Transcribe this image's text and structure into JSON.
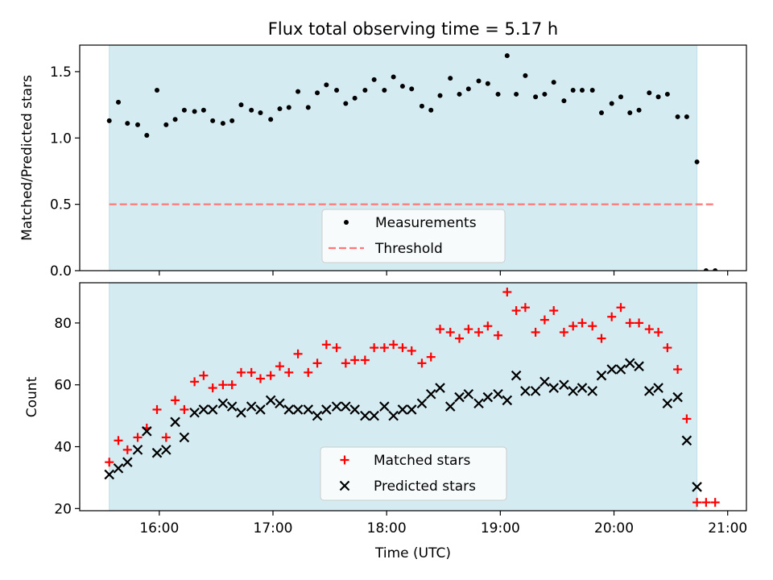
{
  "chart_data": {
    "title": "Flux total observing time = 5.17 h",
    "xlabel": "Time (UTC)",
    "xticks": [
      {
        "t": 16.0,
        "label": "16:00"
      },
      {
        "t": 17.0,
        "label": "17:00"
      },
      {
        "t": 18.0,
        "label": "18:00"
      },
      {
        "t": 19.0,
        "label": "19:00"
      },
      {
        "t": 20.0,
        "label": "20:00"
      },
      {
        "t": 21.0,
        "label": "21:00"
      }
    ],
    "shaded_span": [
      15.56,
      20.73
    ],
    "shade_color": "#d4ebf1",
    "panels": [
      {
        "type": "scatter",
        "ylabel": "Matched/Predicted stars",
        "ylim": [
          0,
          1.7
        ],
        "yticks": [
          {
            "v": 0.0,
            "label": "0.0"
          },
          {
            "v": 0.5,
            "label": "0.5"
          },
          {
            "v": 1.0,
            "label": "1.0"
          },
          {
            "v": 1.5,
            "label": "1.5"
          }
        ],
        "legend_position": "lower-center",
        "series": [
          {
            "name": "Measurements",
            "marker": "dot",
            "color": "#000000",
            "x": [
              15.56,
              15.64,
              15.72,
              15.81,
              15.89,
              15.98,
              16.06,
              16.14,
              16.22,
              16.31,
              16.39,
              16.47,
              16.56,
              16.64,
              16.72,
              16.81,
              16.89,
              16.98,
              17.06,
              17.14,
              17.22,
              17.31,
              17.39,
              17.47,
              17.56,
              17.64,
              17.72,
              17.81,
              17.89,
              17.98,
              18.06,
              18.14,
              18.22,
              18.31,
              18.39,
              18.47,
              18.56,
              18.64,
              18.72,
              18.81,
              18.89,
              18.98,
              19.06,
              19.14,
              19.22,
              19.31,
              19.39,
              19.47,
              19.56,
              19.64,
              19.72,
              19.81,
              19.89,
              19.98,
              20.06,
              20.14,
              20.22,
              20.31,
              20.39,
              20.47,
              20.56,
              20.64,
              20.73,
              20.81,
              20.89
            ],
            "y": [
              1.13,
              1.27,
              1.11,
              1.1,
              1.02,
              1.36,
              1.1,
              1.14,
              1.21,
              1.2,
              1.21,
              1.13,
              1.11,
              1.13,
              1.25,
              1.21,
              1.19,
              1.14,
              1.22,
              1.23,
              1.35,
              1.23,
              1.34,
              1.4,
              1.36,
              1.26,
              1.3,
              1.36,
              1.44,
              1.36,
              1.46,
              1.39,
              1.37,
              1.24,
              1.21,
              1.32,
              1.45,
              1.33,
              1.37,
              1.43,
              1.41,
              1.33,
              1.62,
              1.33,
              1.47,
              1.31,
              1.33,
              1.42,
              1.28,
              1.36,
              1.36,
              1.36,
              1.19,
              1.26,
              1.31,
              1.19,
              1.21,
              1.34,
              1.31,
              1.33,
              1.16,
              1.16,
              0.82,
              0.0,
              0.0
            ]
          },
          {
            "name": "Threshold",
            "marker": "dashed-line",
            "color": "#ff7777",
            "x": [
              15.56,
              20.89
            ],
            "y": [
              0.5,
              0.5
            ]
          }
        ]
      },
      {
        "type": "scatter",
        "ylabel": "Count",
        "ylim": [
          19.3,
          93
        ],
        "yticks": [
          {
            "v": 20,
            "label": "20"
          },
          {
            "v": 40,
            "label": "40"
          },
          {
            "v": 60,
            "label": "60"
          },
          {
            "v": 80,
            "label": "80"
          }
        ],
        "legend_position": "lower-center",
        "series": [
          {
            "name": "Matched stars",
            "marker": "plus",
            "color": "#ff0000",
            "x": [
              15.56,
              15.64,
              15.72,
              15.81,
              15.89,
              15.98,
              16.06,
              16.14,
              16.22,
              16.31,
              16.39,
              16.47,
              16.56,
              16.64,
              16.72,
              16.81,
              16.89,
              16.98,
              17.06,
              17.14,
              17.22,
              17.31,
              17.39,
              17.47,
              17.56,
              17.64,
              17.72,
              17.81,
              17.89,
              17.98,
              18.06,
              18.14,
              18.22,
              18.31,
              18.39,
              18.47,
              18.56,
              18.64,
              18.72,
              18.81,
              18.89,
              18.98,
              19.06,
              19.14,
              19.22,
              19.31,
              19.39,
              19.47,
              19.56,
              19.64,
              19.72,
              19.81,
              19.89,
              19.98,
              20.06,
              20.14,
              20.22,
              20.31,
              20.39,
              20.47,
              20.56,
              20.64,
              20.73,
              20.81,
              20.89
            ],
            "y": [
              35,
              42,
              39,
              43,
              46,
              52,
              43,
              55,
              52,
              61,
              63,
              59,
              60,
              60,
              64,
              64,
              62,
              63,
              66,
              64,
              70,
              64,
              67,
              73,
              72,
              67,
              68,
              68,
              72,
              72,
              73,
              72,
              71,
              67,
              69,
              78,
              77,
              75,
              78,
              77,
              79,
              76,
              90,
              84,
              85,
              77,
              81,
              84,
              77,
              79,
              80,
              79,
              75,
              82,
              85,
              80,
              80,
              78,
              77,
              72,
              65,
              49,
              22,
              22,
              22
            ]
          },
          {
            "name": "Predicted stars",
            "marker": "x",
            "color": "#000000",
            "x": [
              15.56,
              15.64,
              15.72,
              15.81,
              15.89,
              15.98,
              16.06,
              16.14,
              16.22,
              16.31,
              16.39,
              16.47,
              16.56,
              16.64,
              16.72,
              16.81,
              16.89,
              16.98,
              17.06,
              17.14,
              17.22,
              17.31,
              17.39,
              17.47,
              17.56,
              17.64,
              17.72,
              17.81,
              17.89,
              17.98,
              18.06,
              18.14,
              18.22,
              18.31,
              18.39,
              18.47,
              18.56,
              18.64,
              18.72,
              18.81,
              18.89,
              18.98,
              19.06,
              19.14,
              19.22,
              19.31,
              19.39,
              19.47,
              19.56,
              19.64,
              19.72,
              19.81,
              19.89,
              19.98,
              20.06,
              20.14,
              20.22,
              20.31,
              20.39,
              20.47,
              20.56,
              20.64,
              20.73
            ],
            "y": [
              31,
              33,
              35,
              39,
              45,
              38,
              39,
              48,
              43,
              51,
              52,
              52,
              54,
              53,
              51,
              53,
              52,
              55,
              54,
              52,
              52,
              52,
              50,
              52,
              53,
              53,
              52,
              50,
              50,
              53,
              50,
              52,
              52,
              54,
              57,
              59,
              53,
              56,
              57,
              54,
              56,
              57,
              55,
              63,
              58,
              58,
              61,
              59,
              60,
              58,
              59,
              58,
              63,
              65,
              65,
              67,
              66,
              58,
              59,
              54,
              56,
              42,
              27
            ]
          }
        ]
      }
    ]
  }
}
